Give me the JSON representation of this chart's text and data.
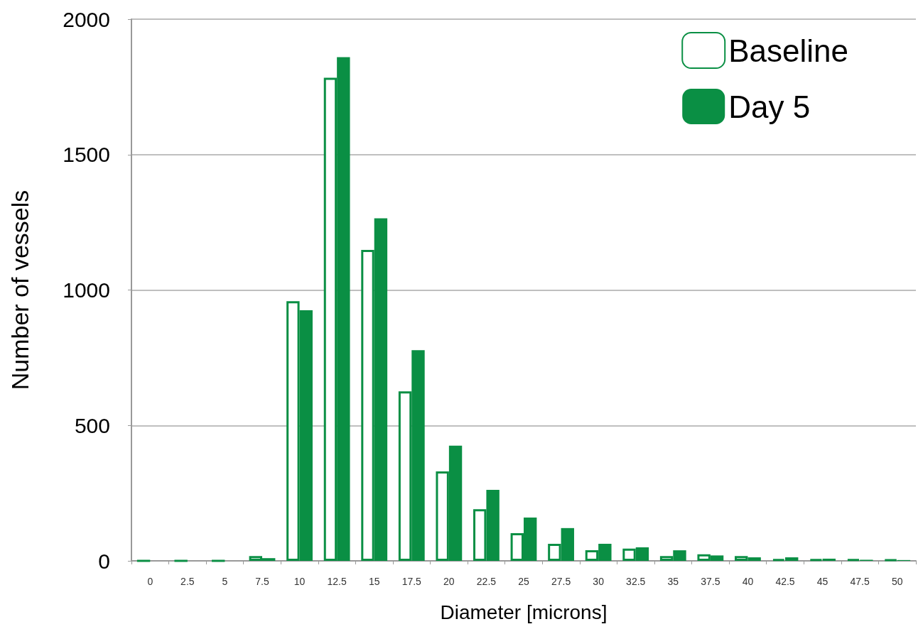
{
  "chart_data": {
    "type": "bar",
    "xlabel": "Diameter [microns]",
    "ylabel": "Number of vessels",
    "categories": [
      "0",
      "2.5",
      "5",
      "7.5",
      "10",
      "12.5",
      "15",
      "17.5",
      "20",
      "22.5",
      "25",
      "27.5",
      "30",
      "32.5",
      "35",
      "37.5",
      "40",
      "42.5",
      "45",
      "47.5",
      "50"
    ],
    "series": [
      {
        "name": "Baseline",
        "color": "#0a8f44",
        "values": [
          0,
          0,
          0,
          18,
          959,
          1784,
          1148,
          626,
          330,
          191,
          102,
          63,
          39,
          45,
          18,
          24,
          18,
          7,
          6,
          6,
          5
        ]
      },
      {
        "name": "Day 5",
        "color": "#0a8f44",
        "values": [
          0,
          0,
          0,
          10,
          925,
          1860,
          1265,
          778,
          425,
          262,
          160,
          121,
          63,
          50,
          39,
          20,
          13,
          13,
          8,
          4,
          3
        ]
      }
    ],
    "ylim": [
      0,
      2000
    ],
    "yticks": [
      0,
      500,
      1000,
      1500,
      2000
    ],
    "grid": "y",
    "legend": "top right"
  }
}
